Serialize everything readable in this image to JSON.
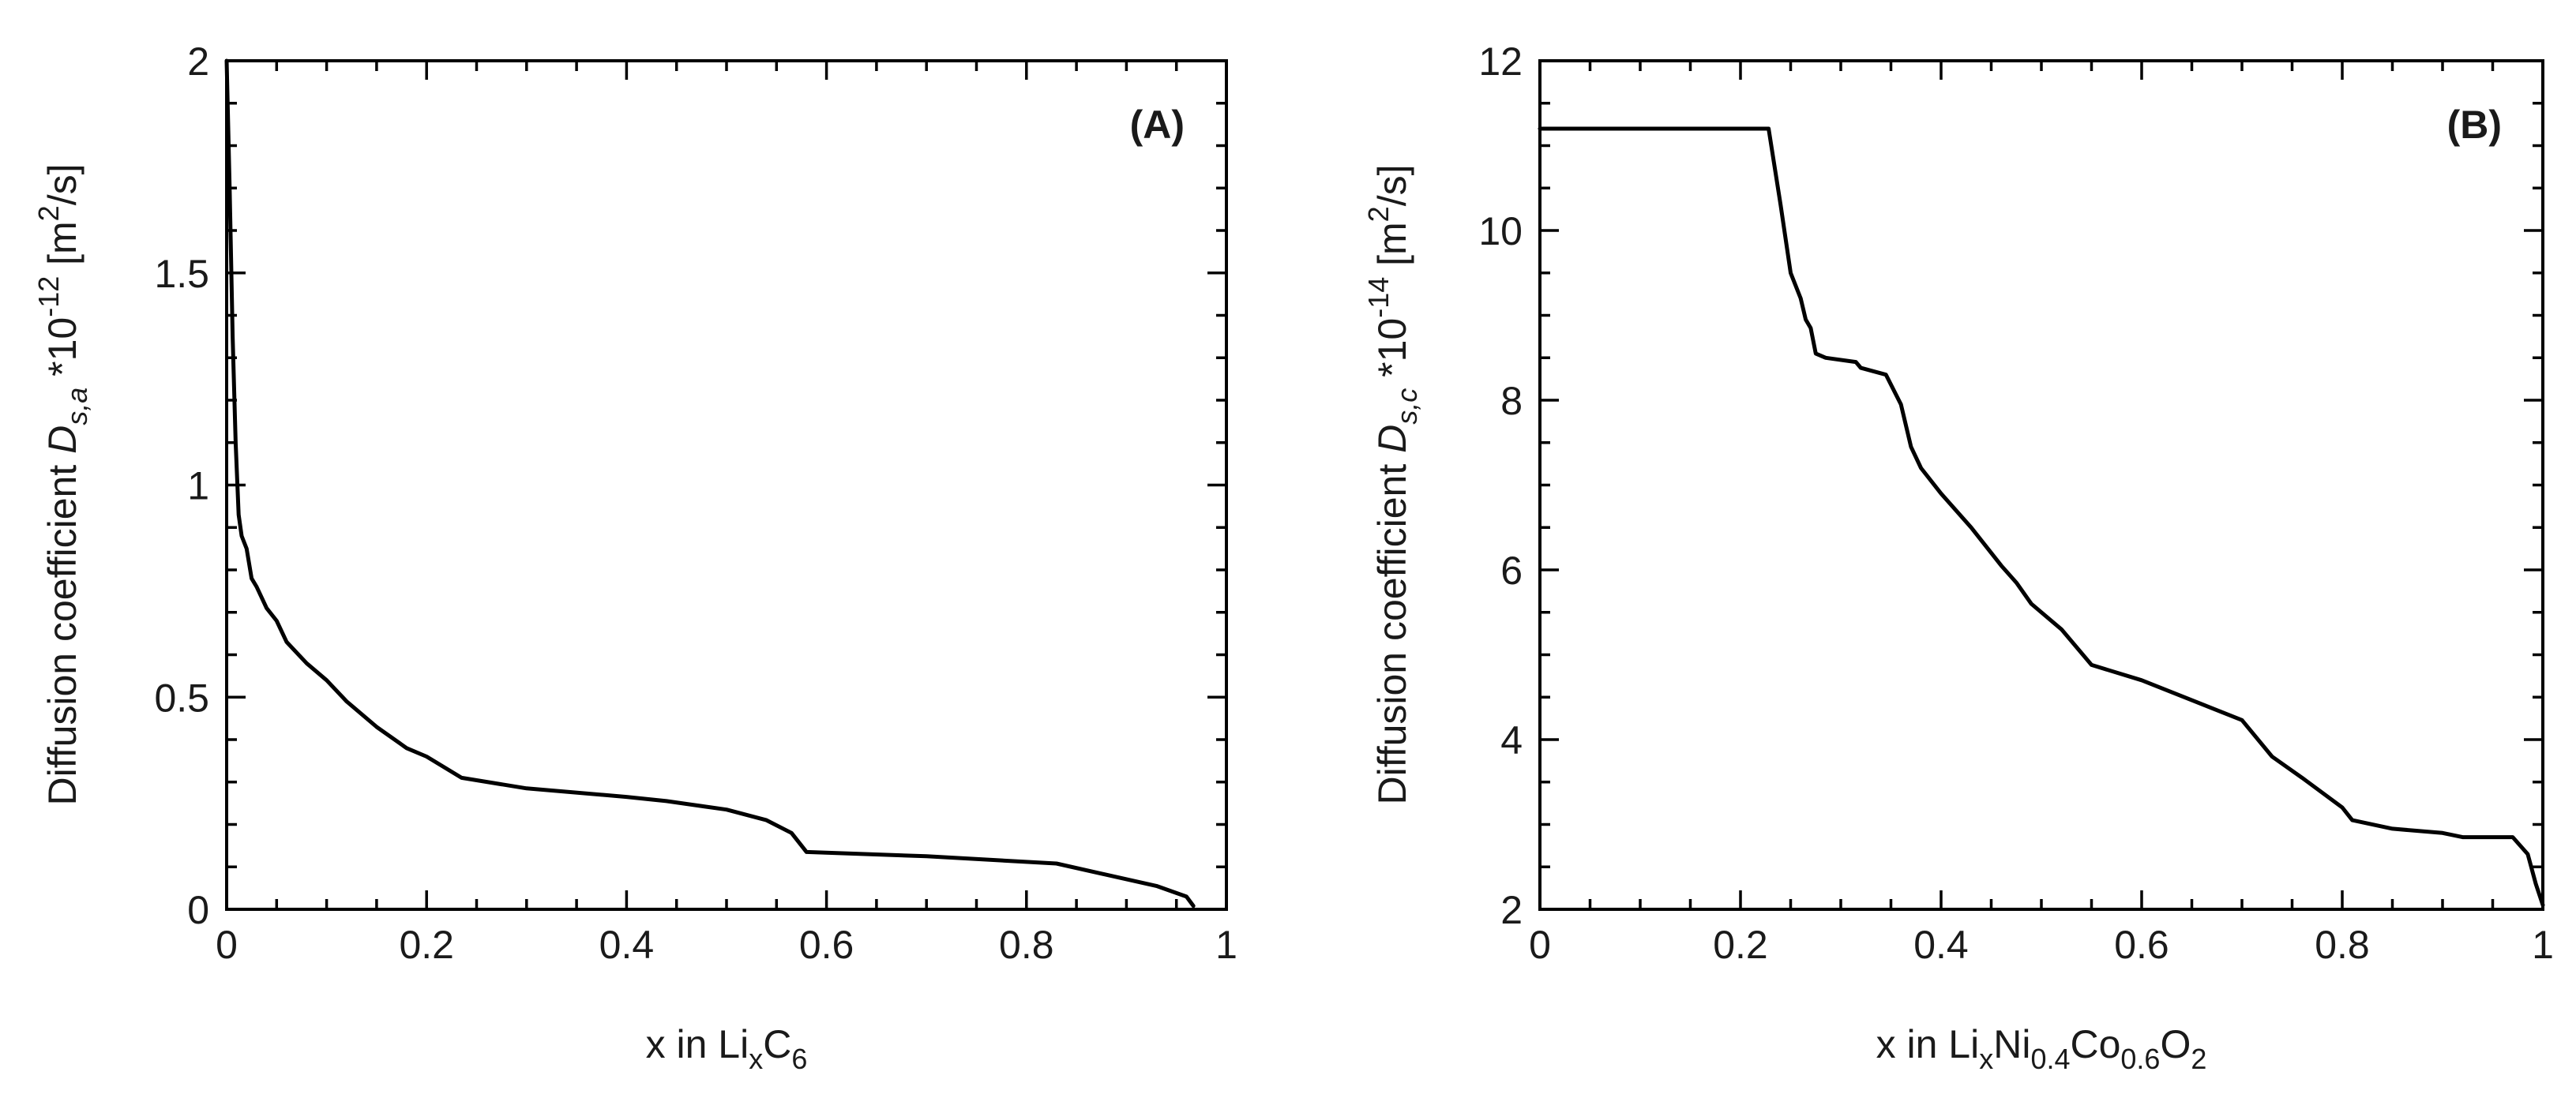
{
  "colors": {
    "line": "#000000",
    "text": "#1a1a1a",
    "background": "#ffffff"
  },
  "chart_data": [
    {
      "type": "line",
      "panel_label": "(A)",
      "xlabel": {
        "main": "x in Li",
        "sub1": "x",
        "mid": "C",
        "sub2": "6"
      },
      "ylabel": {
        "main": "Diffusion coefficient ",
        "italic": "D",
        "sub": "s,a",
        "mid": " *10",
        "sup": "-12",
        "pre_unit": " [m",
        "unit_sup": "2",
        "post_unit": "/s]"
      },
      "xlim": [
        0,
        1
      ],
      "ylim": [
        0,
        2
      ],
      "xticks": [
        0,
        0.2,
        0.4,
        0.6,
        0.8,
        1
      ],
      "xtick_labels": [
        "0",
        "0.2",
        "0.4",
        "0.6",
        "0.8",
        "1"
      ],
      "yticks": [
        0,
        0.5,
        1,
        1.5,
        2
      ],
      "ytick_labels": [
        "0",
        "0.5",
        "1",
        "1.5",
        "2"
      ],
      "x_minor_step": 0.05,
      "y_minor_step": 0.1,
      "series": [
        {
          "name": "Ds,a",
          "x": [
            0,
            0.003,
            0.006,
            0.009,
            0.012,
            0.015,
            0.02,
            0.025,
            0.03,
            0.04,
            0.05,
            0.06,
            0.08,
            0.1,
            0.12,
            0.15,
            0.18,
            0.2,
            0.235,
            0.3,
            0.4,
            0.44,
            0.5,
            0.54,
            0.565,
            0.58,
            0.7,
            0.83,
            0.93,
            0.96,
            0.967
          ],
          "y": [
            2.0,
            1.7,
            1.35,
            1.1,
            0.93,
            0.88,
            0.85,
            0.78,
            0.76,
            0.71,
            0.68,
            0.63,
            0.58,
            0.54,
            0.49,
            0.43,
            0.38,
            0.36,
            0.31,
            0.285,
            0.265,
            0.255,
            0.235,
            0.21,
            0.18,
            0.135,
            0.125,
            0.108,
            0.055,
            0.03,
            0.008
          ]
        }
      ]
    },
    {
      "type": "line",
      "panel_label": "(B)",
      "xlabel": {
        "main": "x in Li",
        "sub1": "x",
        "mid1": "Ni",
        "sub2": "0.4",
        "mid2": "Co",
        "sub3": "0.6",
        "mid3": "O",
        "sub4": "2"
      },
      "ylabel": {
        "main": "Diffusion coefficient ",
        "italic": "D",
        "sub": "s,c",
        "mid": " *10",
        "sup": "-14",
        "pre_unit": " [m",
        "unit_sup": "2",
        "post_unit": "/s]"
      },
      "xlim": [
        0,
        1
      ],
      "ylim": [
        2,
        12
      ],
      "xticks": [
        0,
        0.2,
        0.4,
        0.6,
        0.8,
        1
      ],
      "xtick_labels": [
        "0",
        "0.2",
        "0.4",
        "0.6",
        "0.8",
        "1"
      ],
      "yticks": [
        2,
        4,
        6,
        8,
        10,
        12
      ],
      "ytick_labels": [
        "2",
        "4",
        "6",
        "8",
        "10",
        "12"
      ],
      "x_minor_step": 0.05,
      "y_minor_step": 0.5,
      "series": [
        {
          "name": "Ds,c",
          "x": [
            0,
            0.228,
            0.24,
            0.25,
            0.26,
            0.265,
            0.27,
            0.275,
            0.285,
            0.315,
            0.32,
            0.345,
            0.36,
            0.37,
            0.38,
            0.4,
            0.43,
            0.46,
            0.475,
            0.49,
            0.52,
            0.55,
            0.6,
            0.7,
            0.73,
            0.76,
            0.8,
            0.81,
            0.85,
            0.9,
            0.92,
            0.97,
            0.985,
            0.993,
            1.0
          ],
          "y": [
            11.2,
            11.2,
            10.3,
            9.5,
            9.2,
            8.95,
            8.85,
            8.55,
            8.5,
            8.45,
            8.38,
            8.3,
            7.95,
            7.45,
            7.2,
            6.9,
            6.5,
            6.05,
            5.85,
            5.6,
            5.3,
            4.88,
            4.7,
            4.23,
            3.8,
            3.55,
            3.2,
            3.05,
            2.95,
            2.9,
            2.85,
            2.85,
            2.65,
            2.3,
            2.05
          ]
        }
      ]
    }
  ]
}
